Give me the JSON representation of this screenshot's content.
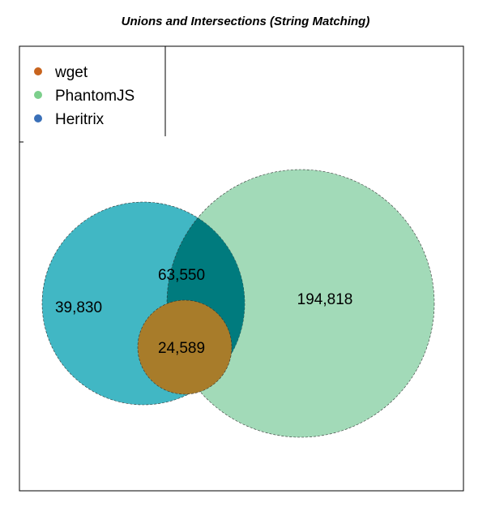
{
  "title": "Unions and Intersections (String Matching)",
  "legend": [
    {
      "name": "wget",
      "color": "#c8641e"
    },
    {
      "name": "PhantomJS",
      "color": "#7ccf8c"
    },
    {
      "name": "Heritrix",
      "color": "#3a70b8"
    }
  ],
  "regions": {
    "heritrix_only": "39,830",
    "phantomjs_only": "194,818",
    "heritrix_phantomjs": "63,550",
    "all_three": "24,589"
  },
  "colors": {
    "heritrix_fill": "#41b7c4",
    "phantomjs_fill": "#a2dab8",
    "overlap_fill": "#007b7e",
    "wget_fill": "#a87c2a"
  }
}
